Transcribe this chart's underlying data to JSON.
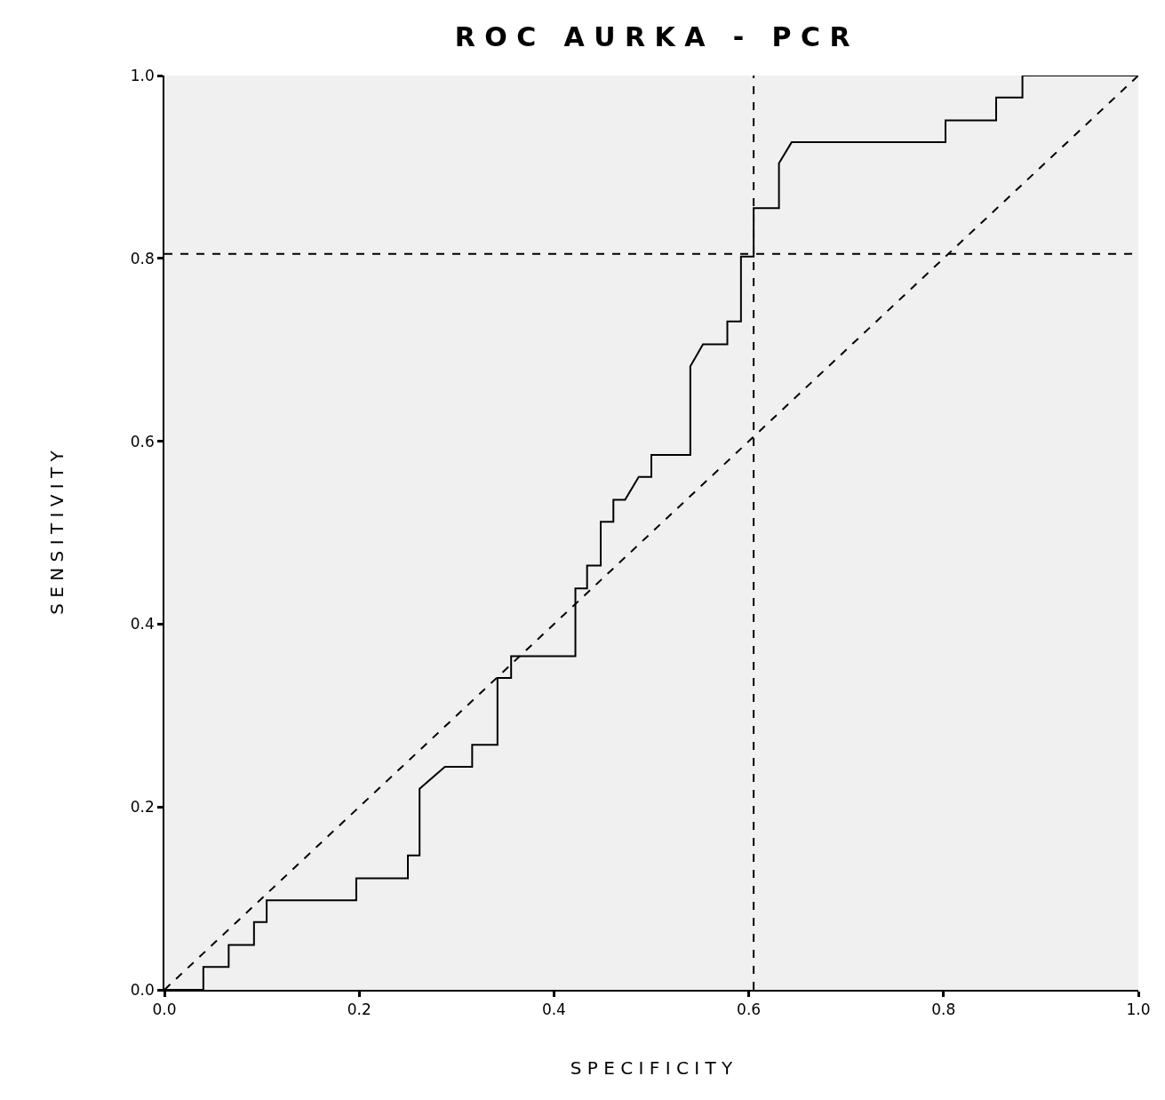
{
  "chart_data": {
    "type": "line",
    "title": "R O C   A U R K A   -   P C R",
    "xlabel": "S P E C I F I C I T Y",
    "ylabel": "S E N S I T I V I T Y",
    "series": [
      {
        "color": "#000000",
        "line_style": "solid",
        "x": [
          0,
          0.04,
          0.04,
          0.066,
          0.066,
          0.092,
          0.092,
          0.105,
          0.105,
          0.197,
          0.197,
          0.25,
          0.25,
          0.262,
          0.262,
          0.288,
          0.316,
          0.316,
          0.342,
          0.342,
          0.356,
          0.356,
          0.422,
          0.422,
          0.434,
          0.434,
          0.448,
          0.448,
          0.461,
          0.461,
          0.473,
          0.487,
          0.5,
          0.5,
          0.54,
          0.54,
          0.553,
          0.578,
          0.578,
          0.592,
          0.592,
          0.605,
          0.605,
          0.631,
          0.631,
          0.644,
          0.802,
          0.802,
          0.854,
          0.854,
          0.881,
          0.881,
          1.0
        ],
        "values": [
          0,
          0,
          0.025,
          0.025,
          0.049,
          0.049,
          0.074,
          0.074,
          0.098,
          0.098,
          0.122,
          0.122,
          0.147,
          0.147,
          0.22,
          0.244,
          0.244,
          0.268,
          0.268,
          0.341,
          0.341,
          0.365,
          0.365,
          0.439,
          0.439,
          0.464,
          0.464,
          0.512,
          0.512,
          0.536,
          0.536,
          0.561,
          0.561,
          0.585,
          0.585,
          0.682,
          0.706,
          0.706,
          0.731,
          0.731,
          0.802,
          0.802,
          0.855,
          0.855,
          0.904,
          0.927,
          0.927,
          0.951,
          0.951,
          0.976,
          0.976,
          1.0,
          1.0
        ]
      },
      {
        "color": "#000000",
        "line_style": "dashed",
        "x": [
          0,
          1
        ],
        "values": [
          0,
          1
        ]
      }
    ],
    "ref_lines": [
      {
        "axis": "x",
        "value": 0.605,
        "color": "#000000",
        "line_style": "dashed"
      },
      {
        "axis": "y",
        "value": 0.805,
        "color": "#000000",
        "line_style": "dashed"
      }
    ],
    "xlim": [
      0,
      1
    ],
    "ylim": [
      0,
      1
    ],
    "xticks": [
      {
        "value": 0,
        "label": "0.0"
      },
      {
        "value": 0.2,
        "label": "0.2"
      },
      {
        "value": 0.4,
        "label": "0.4"
      },
      {
        "value": 0.6,
        "label": "0.6"
      },
      {
        "value": 0.8,
        "label": "0.8"
      },
      {
        "value": 1,
        "label": "1.0"
      }
    ],
    "yticks": [
      {
        "value": 0,
        "label": "0.0"
      },
      {
        "value": 0.2,
        "label": "0.2"
      },
      {
        "value": 0.4,
        "label": "0.4"
      },
      {
        "value": 0.6,
        "label": "0.6"
      },
      {
        "value": 0.8,
        "label": "0.8"
      },
      {
        "value": 1,
        "label": "1.0"
      }
    ],
    "grid": false,
    "marker": "none"
  }
}
